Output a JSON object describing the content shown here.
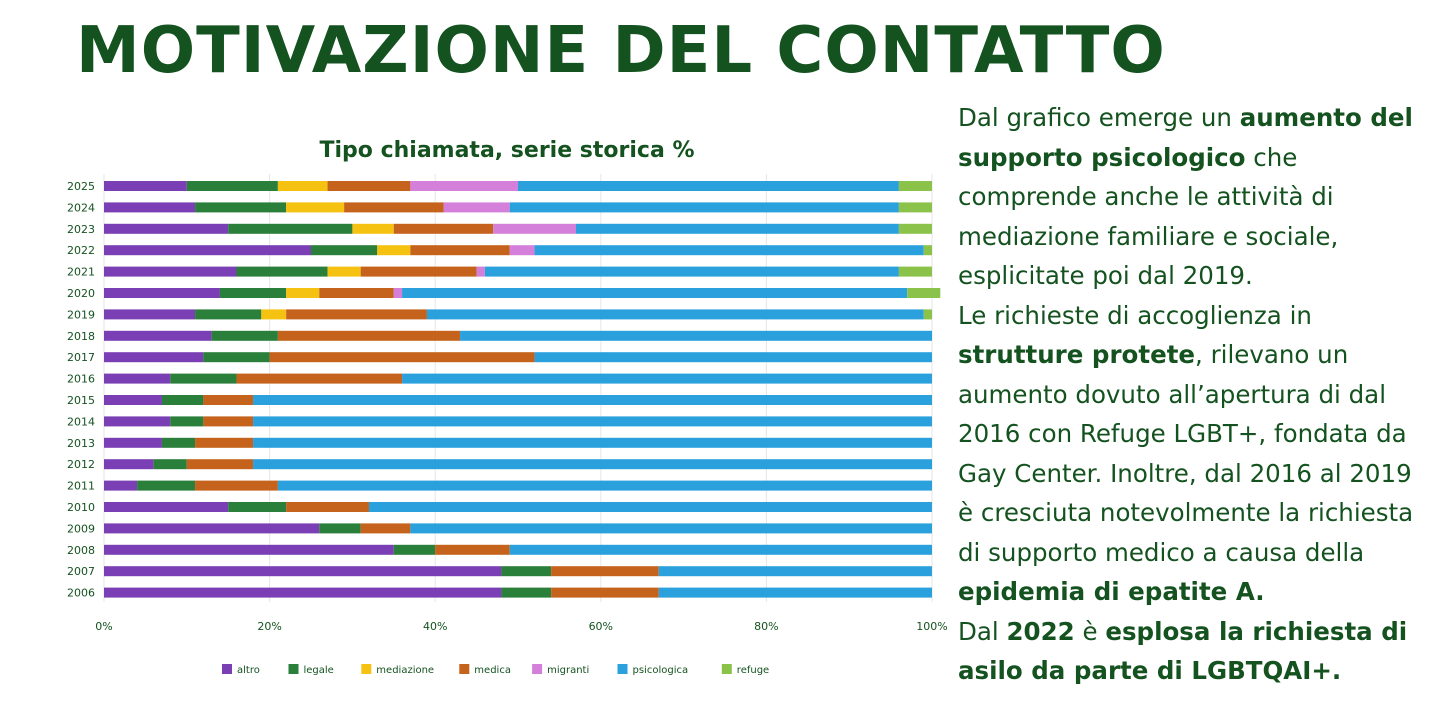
{
  "page": {
    "title": "MOTIVAZIONE DEL CONTATTO"
  },
  "text": {
    "p1": [
      {
        "t": "Dal grafico emerge un ",
        "b": false
      },
      {
        "t": "aumento del supporto psicologico",
        "b": true
      },
      {
        "t": " che comprende anche le attività di mediazione familiare e sociale, esplicitate poi dal 2019.",
        "b": false
      }
    ],
    "p2": [
      {
        "t": "Le richieste di accoglienza in ",
        "b": false
      },
      {
        "t": "strutture protete",
        "b": true
      },
      {
        "t": ", rilevano un aumento dovuto all’apertura di dal 2016 con Refuge LGBT+, fondata da Gay Center. Inoltre, dal 2016 al 2019 è cresciuta notevolmente la richiesta di supporto medico a causa della ",
        "b": false
      },
      {
        "t": "epidemia di epatite A.",
        "b": true
      }
    ],
    "p3": [
      {
        "t": "Dal ",
        "b": false
      },
      {
        "t": "2022",
        "b": true
      },
      {
        "t": " è ",
        "b": false
      },
      {
        "t": "esplosa la richiesta di asilo da parte di LGBTQAI+.",
        "b": true
      }
    ]
  },
  "chart_data": {
    "type": "bar",
    "orientation": "horizontal",
    "stacked": true,
    "title": "Tipo chiamata, serie storica %",
    "xlim": [
      0,
      100
    ],
    "x_ticks": [
      0,
      20,
      40,
      60,
      80,
      100
    ],
    "x_tick_labels": [
      "0%",
      "20%",
      "40%",
      "60%",
      "80%",
      "100%"
    ],
    "grid": true,
    "legend_position": "bottom",
    "categories": [
      "2025",
      "2024",
      "2023",
      "2022",
      "2021",
      "2020",
      "2019",
      "2018",
      "2017",
      "2016",
      "2015",
      "2014",
      "2013",
      "2012",
      "2011",
      "2010",
      "2009",
      "2008",
      "2007",
      "2006"
    ],
    "series": [
      {
        "name": "altro",
        "color": "#7b3fb5",
        "values": [
          10,
          11,
          15,
          25,
          16,
          14,
          11,
          13,
          12,
          8,
          7,
          8,
          7,
          6,
          4,
          15,
          26,
          35,
          48,
          48
        ]
      },
      {
        "name": "legale",
        "color": "#2a7f3a",
        "values": [
          11,
          11,
          15,
          8,
          11,
          8,
          8,
          8,
          8,
          8,
          5,
          4,
          4,
          4,
          7,
          7,
          5,
          5,
          6,
          6
        ]
      },
      {
        "name": "mediazione",
        "color": "#f5c211",
        "values": [
          6,
          7,
          5,
          4,
          4,
          4,
          3,
          0,
          0,
          0,
          0,
          0,
          0,
          0,
          0,
          0,
          0,
          0,
          0,
          0
        ]
      },
      {
        "name": "medica",
        "color": "#c5621b",
        "values": [
          10,
          12,
          12,
          12,
          14,
          9,
          17,
          22,
          32,
          20,
          6,
          6,
          7,
          8,
          10,
          10,
          6,
          9,
          13,
          13
        ]
      },
      {
        "name": "migranti",
        "color": "#d47fd9",
        "values": [
          13,
          8,
          10,
          3,
          1,
          1,
          0,
          0,
          0,
          0,
          0,
          0,
          0,
          0,
          0,
          0,
          0,
          0,
          0,
          0
        ]
      },
      {
        "name": "psicologica",
        "color": "#2aa1dd",
        "values": [
          46,
          47,
          39,
          47,
          50,
          61,
          60,
          57,
          48,
          64,
          82,
          82,
          82,
          82,
          79,
          68,
          63,
          51,
          33,
          33
        ]
      },
      {
        "name": "refuge",
        "color": "#8bc34a",
        "values": [
          4,
          4,
          4,
          1,
          4,
          4,
          1,
          0,
          0,
          0,
          0,
          0,
          0,
          0,
          0,
          0,
          0,
          0,
          0,
          0
        ]
      }
    ]
  }
}
